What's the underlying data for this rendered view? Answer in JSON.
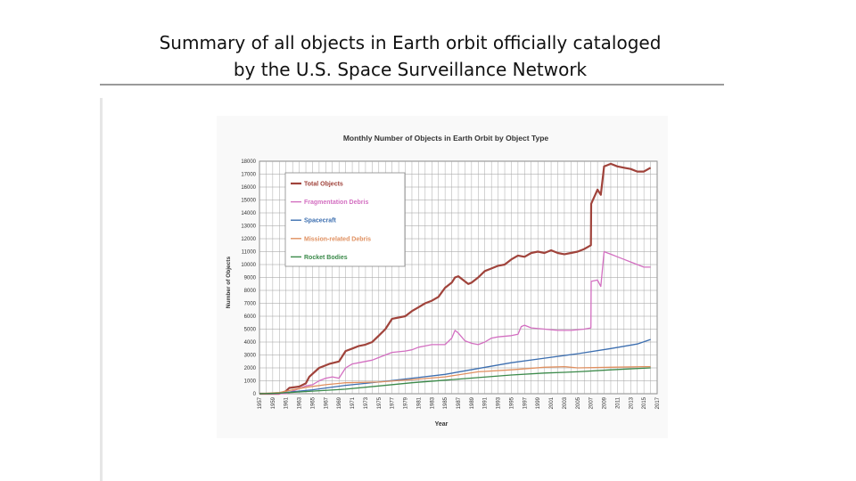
{
  "slide": {
    "title_line1": "Summary of all objects in Earth orbit officially cataloged",
    "title_line2": "by the U.S. Space Surveillance Network"
  },
  "chart_data": {
    "type": "line",
    "title": "Monthly Number of Objects in Earth Orbit by Object Type",
    "xlabel": "Year",
    "ylabel": "Number of Objects",
    "xlim": [
      1957,
      2017
    ],
    "ylim": [
      0,
      18000
    ],
    "yticks": [
      0,
      1000,
      2000,
      3000,
      4000,
      5000,
      6000,
      7000,
      8000,
      9000,
      10000,
      11000,
      12000,
      13000,
      14000,
      15000,
      16000,
      17000,
      18000
    ],
    "xticks": [
      "1957",
      "1959",
      "1961",
      "1963",
      "1965",
      "1967",
      "1969",
      "1971",
      "1973",
      "1975",
      "1977",
      "1979",
      "1981",
      "1983",
      "1985",
      "1987",
      "1989",
      "1991",
      "1993",
      "1995",
      "1997",
      "1999",
      "2001",
      "2003",
      "2005",
      "2007",
      "2009",
      "2011",
      "2013",
      "2015",
      "2017"
    ],
    "grid": true,
    "legend_position": "top-left",
    "series": [
      {
        "name": "Total Objects",
        "color": "#a0433b",
        "x": [
          1957,
          1960,
          1961,
          1961.5,
          1963,
          1964,
          1964.5,
          1966,
          1967,
          1967.5,
          1969,
          1970,
          1971,
          1972,
          1973,
          1974,
          1975,
          1976,
          1977,
          1979,
          1980,
          1981,
          1982,
          1983,
          1984,
          1985,
          1986,
          1986.5,
          1987,
          1988,
          1988.5,
          1989,
          1990,
          1991,
          1992,
          1993,
          1994,
          1995,
          1996,
          1997,
          1998,
          1999,
          2000,
          2001,
          2002,
          2003,
          2004,
          2005,
          2006,
          2007,
          2007.05,
          2008,
          2008.5,
          2009,
          2009.5,
          2010,
          2011,
          2012,
          2013,
          2014,
          2015,
          2016
        ],
        "values": [
          0,
          0,
          200,
          450,
          550,
          800,
          1300,
          2000,
          2200,
          2300,
          2500,
          3300,
          3500,
          3700,
          3800,
          4000,
          4500,
          5000,
          5800,
          6000,
          6400,
          6700,
          7000,
          7200,
          7500,
          8200,
          8600,
          9000,
          9100,
          8700,
          8500,
          8600,
          9000,
          9500,
          9700,
          9900,
          10000,
          10400,
          10700,
          10600,
          10900,
          11000,
          10900,
          11100,
          10900,
          10800,
          10900,
          11000,
          11200,
          11500,
          14700,
          15800,
          15400,
          17600,
          17700,
          17800,
          17600,
          17500,
          17400,
          17200,
          17200,
          17500
        ]
      },
      {
        "name": "Fragmentation Debris",
        "color": "#d36fc1",
        "x": [
          1957,
          1961,
          1962,
          1963,
          1964,
          1965,
          1966,
          1967,
          1968,
          1969,
          1970,
          1971,
          1972,
          1974,
          1975,
          1976,
          1977,
          1979,
          1980,
          1981,
          1982,
          1983,
          1985,
          1986,
          1986.5,
          1987,
          1988,
          1989,
          1990,
          1991,
          1992,
          1993,
          1995,
          1996,
          1996.5,
          1997,
          1998,
          2000,
          2002,
          2004,
          2006,
          2007,
          2007.05,
          2008,
          2008.5,
          2009,
          2009.5,
          2010,
          2011,
          2012,
          2013,
          2014,
          2015,
          2016
        ],
        "values": [
          0,
          0,
          200,
          400,
          600,
          700,
          1000,
          1200,
          1300,
          1200,
          2000,
          2300,
          2400,
          2600,
          2800,
          3000,
          3200,
          3300,
          3400,
          3600,
          3700,
          3800,
          3800,
          4300,
          4900,
          4700,
          4100,
          3900,
          3800,
          4000,
          4300,
          4400,
          4500,
          4600,
          5200,
          5300,
          5100,
          5000,
          4900,
          4900,
          5000,
          5100,
          8700,
          8800,
          8300,
          11000,
          10900,
          10800,
          10600,
          10400,
          10200,
          10000,
          9800,
          9800
        ]
      },
      {
        "name": "Spacecraft",
        "color": "#3d6fb0",
        "x": [
          1957,
          1960,
          1965,
          1970,
          1975,
          1980,
          1985,
          1990,
          1995,
          2000,
          2005,
          2010,
          2014,
          2016
        ],
        "values": [
          0,
          50,
          300,
          650,
          900,
          1200,
          1500,
          1950,
          2400,
          2750,
          3100,
          3500,
          3850,
          4200
        ]
      },
      {
        "name": "Mission-related Debris",
        "color": "#e09060",
        "x": [
          1957,
          1960,
          1964,
          1967,
          1970,
          1975,
          1980,
          1985,
          1990,
          1995,
          2000,
          2003,
          2005,
          2010,
          2015,
          2016
        ],
        "values": [
          0,
          100,
          500,
          700,
          850,
          900,
          1100,
          1300,
          1700,
          1850,
          2050,
          2100,
          2000,
          2050,
          2100,
          2100
        ]
      },
      {
        "name": "Rocket Bodies",
        "color": "#3b8a4a",
        "x": [
          1957,
          1960,
          1965,
          1970,
          1975,
          1980,
          1985,
          1990,
          1995,
          2000,
          2005,
          2010,
          2016
        ],
        "values": [
          0,
          50,
          200,
          350,
          600,
          850,
          1050,
          1250,
          1450,
          1600,
          1700,
          1850,
          2000
        ]
      }
    ]
  }
}
